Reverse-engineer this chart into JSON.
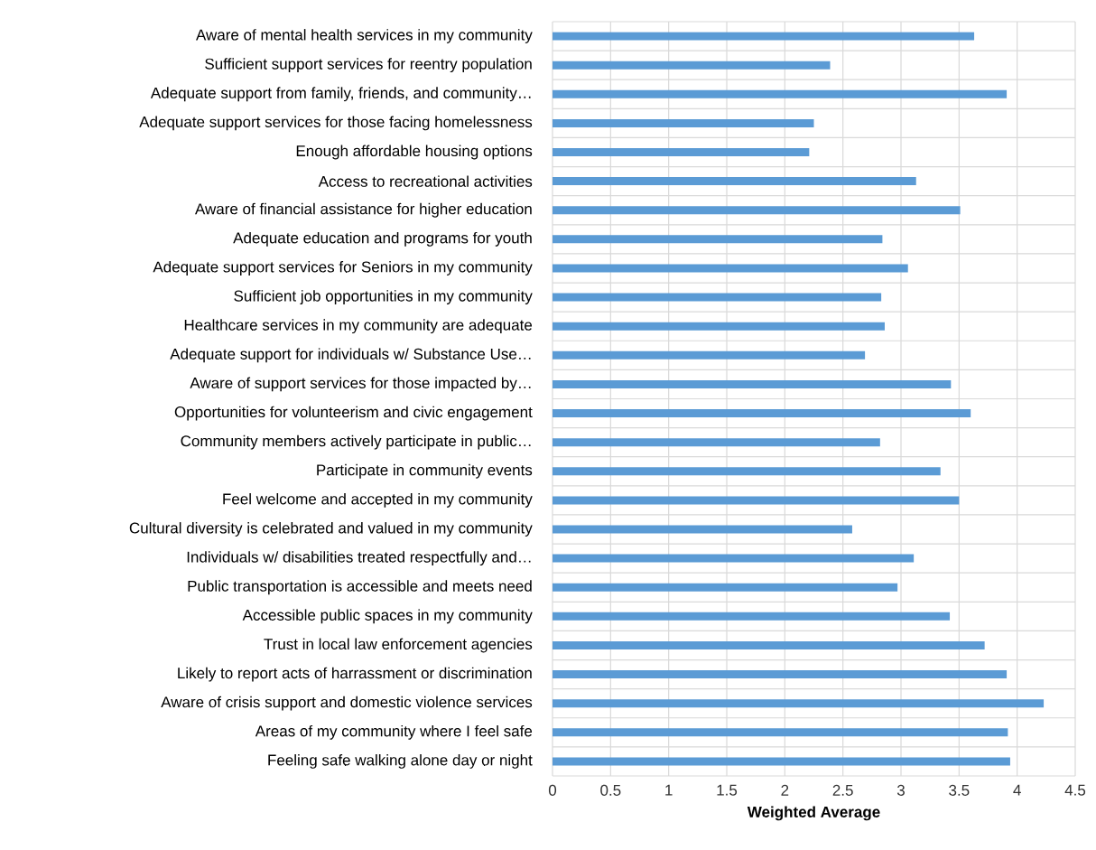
{
  "chart_data": {
    "type": "bar",
    "orientation": "horizontal",
    "xlabel": "Weighted Average",
    "categories": [
      "Aware of mental health services in my community",
      "Sufficient support services for reentry population",
      "Adequate support from family, friends, and community…",
      "Adequate support services for those facing homelessness",
      "Enough affordable housing options",
      "Access to recreational activities",
      "Aware of financial assistance for higher education",
      "Adequate education and programs for youth",
      "Adequate support services for Seniors in my community",
      "Sufficient job opportunities in my community",
      "Healthcare services in my community are adequate",
      "Adequate support for individuals w/ Substance Use…",
      "Aware of support services for those impacted by…",
      "Opportunities for volunteerism and civic engagement",
      "Community members actively participate in public…",
      "Participate in community events",
      "Feel welcome and accepted in my community",
      "Cultural diversity is celebrated and valued in my community",
      "Individuals w/ disabilities treated respectfully and…",
      "Public transportation is accessible and meets need",
      "Accessible public spaces in my community",
      "Trust in local law enforcement agencies",
      "Likely to report acts of harrassment or discrimination",
      "Aware of crisis support and domestic violence services",
      "Areas of my community where I feel safe",
      "Feeling safe walking alone day or night"
    ],
    "values": [
      3.63,
      2.39,
      3.91,
      2.25,
      2.21,
      3.13,
      3.51,
      2.84,
      3.06,
      2.83,
      2.86,
      2.69,
      3.43,
      3.6,
      2.82,
      3.34,
      3.5,
      2.58,
      3.11,
      2.97,
      3.42,
      3.72,
      3.91,
      4.23,
      3.92,
      3.94
    ],
    "color": "#5b9bd5",
    "xlim": [
      0,
      4.5
    ],
    "xticks": [
      0,
      0.5,
      1,
      1.5,
      2,
      2.5,
      3,
      3.5,
      4,
      4.5
    ],
    "grid": true
  }
}
